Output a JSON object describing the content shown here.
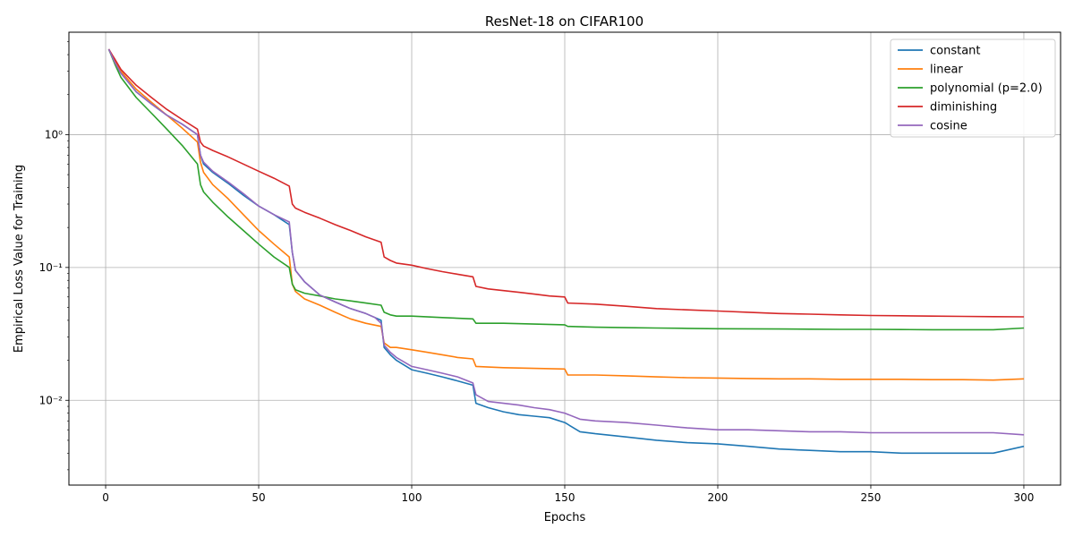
{
  "chart_data": {
    "type": "line",
    "title": "ResNet-18 on CIFAR100",
    "xlabel": "Epochs",
    "ylabel": "Empirical Loss Value for Training",
    "xlim": [
      -12,
      312
    ],
    "ylim": [
      0.0023,
      5.9
    ],
    "yscale": "log",
    "grid": true,
    "legend_position": "top-right",
    "x_ticks": [
      0,
      50,
      100,
      150,
      200,
      250,
      300
    ],
    "x_tick_labels": [
      "0",
      "50",
      "100",
      "150",
      "200",
      "250",
      "300"
    ],
    "y_ticks": [
      0.01,
      0.1,
      1
    ],
    "y_tick_labels": [
      "10⁻²",
      "10⁻¹",
      "10⁰"
    ],
    "series": [
      {
        "name": "constant",
        "color": "#1f77b4",
        "points": [
          [
            1,
            4.4
          ],
          [
            3,
            3.5
          ],
          [
            5,
            2.9
          ],
          [
            10,
            2.1
          ],
          [
            15,
            1.7
          ],
          [
            20,
            1.4
          ],
          [
            25,
            1.2
          ],
          [
            30,
            1.0
          ],
          [
            31,
            0.7
          ],
          [
            32,
            0.6
          ],
          [
            35,
            0.52
          ],
          [
            40,
            0.43
          ],
          [
            45,
            0.35
          ],
          [
            50,
            0.29
          ],
          [
            55,
            0.25
          ],
          [
            60,
            0.21
          ],
          [
            61,
            0.13
          ],
          [
            62,
            0.095
          ],
          [
            65,
            0.078
          ],
          [
            70,
            0.062
          ],
          [
            75,
            0.055
          ],
          [
            80,
            0.049
          ],
          [
            85,
            0.045
          ],
          [
            88,
            0.042
          ],
          [
            90,
            0.04
          ],
          [
            91,
            0.025
          ],
          [
            93,
            0.022
          ],
          [
            95,
            0.02
          ],
          [
            100,
            0.017
          ],
          [
            105,
            0.016
          ],
          [
            110,
            0.015
          ],
          [
            115,
            0.014
          ],
          [
            120,
            0.013
          ],
          [
            121,
            0.0095
          ],
          [
            125,
            0.0088
          ],
          [
            130,
            0.0082
          ],
          [
            135,
            0.0078
          ],
          [
            140,
            0.0076
          ],
          [
            145,
            0.0074
          ],
          [
            150,
            0.0068
          ],
          [
            155,
            0.0058
          ],
          [
            160,
            0.0056
          ],
          [
            170,
            0.0053
          ],
          [
            180,
            0.005
          ],
          [
            190,
            0.0048
          ],
          [
            200,
            0.0047
          ],
          [
            210,
            0.0045
          ],
          [
            220,
            0.0043
          ],
          [
            230,
            0.0042
          ],
          [
            240,
            0.0041
          ],
          [
            250,
            0.0041
          ],
          [
            260,
            0.004
          ],
          [
            270,
            0.004
          ],
          [
            280,
            0.004
          ],
          [
            290,
            0.004
          ],
          [
            300,
            0.0045
          ]
        ]
      },
      {
        "name": "linear",
        "color": "#ff7f0e",
        "points": [
          [
            1,
            4.4
          ],
          [
            3,
            3.6
          ],
          [
            5,
            3.0
          ],
          [
            10,
            2.2
          ],
          [
            15,
            1.75
          ],
          [
            20,
            1.4
          ],
          [
            25,
            1.12
          ],
          [
            30,
            0.88
          ],
          [
            31,
            0.62
          ],
          [
            32,
            0.52
          ],
          [
            35,
            0.42
          ],
          [
            40,
            0.33
          ],
          [
            45,
            0.25
          ],
          [
            50,
            0.19
          ],
          [
            55,
            0.15
          ],
          [
            60,
            0.12
          ],
          [
            61,
            0.075
          ],
          [
            62,
            0.066
          ],
          [
            65,
            0.058
          ],
          [
            70,
            0.052
          ],
          [
            75,
            0.046
          ],
          [
            80,
            0.041
          ],
          [
            85,
            0.038
          ],
          [
            90,
            0.036
          ],
          [
            91,
            0.027
          ],
          [
            93,
            0.025
          ],
          [
            95,
            0.025
          ],
          [
            100,
            0.024
          ],
          [
            105,
            0.023
          ],
          [
            110,
            0.022
          ],
          [
            115,
            0.021
          ],
          [
            120,
            0.0205
          ],
          [
            121,
            0.018
          ],
          [
            125,
            0.0178
          ],
          [
            130,
            0.0176
          ],
          [
            135,
            0.0175
          ],
          [
            140,
            0.0174
          ],
          [
            145,
            0.0173
          ],
          [
            150,
            0.0172
          ],
          [
            151,
            0.0155
          ],
          [
            160,
            0.0155
          ],
          [
            170,
            0.0153
          ],
          [
            180,
            0.015
          ],
          [
            190,
            0.0148
          ],
          [
            200,
            0.0147
          ],
          [
            210,
            0.0146
          ],
          [
            220,
            0.0145
          ],
          [
            230,
            0.0145
          ],
          [
            240,
            0.0144
          ],
          [
            250,
            0.0144
          ],
          [
            260,
            0.0144
          ],
          [
            270,
            0.0143
          ],
          [
            280,
            0.0143
          ],
          [
            290,
            0.0142
          ],
          [
            300,
            0.0145
          ]
        ]
      },
      {
        "name": "polynomial (p=2.0)",
        "color": "#2ca02c",
        "points": [
          [
            1,
            4.4
          ],
          [
            3,
            3.4
          ],
          [
            5,
            2.7
          ],
          [
            10,
            1.9
          ],
          [
            15,
            1.45
          ],
          [
            20,
            1.1
          ],
          [
            25,
            0.83
          ],
          [
            30,
            0.6
          ],
          [
            31,
            0.42
          ],
          [
            32,
            0.37
          ],
          [
            35,
            0.31
          ],
          [
            40,
            0.24
          ],
          [
            45,
            0.19
          ],
          [
            50,
            0.15
          ],
          [
            55,
            0.12
          ],
          [
            60,
            0.1
          ],
          [
            61,
            0.075
          ],
          [
            62,
            0.068
          ],
          [
            65,
            0.064
          ],
          [
            70,
            0.061
          ],
          [
            75,
            0.058
          ],
          [
            80,
            0.056
          ],
          [
            85,
            0.054
          ],
          [
            90,
            0.052
          ],
          [
            91,
            0.046
          ],
          [
            93,
            0.044
          ],
          [
            95,
            0.043
          ],
          [
            100,
            0.043
          ],
          [
            110,
            0.042
          ],
          [
            120,
            0.041
          ],
          [
            121,
            0.038
          ],
          [
            130,
            0.038
          ],
          [
            140,
            0.0375
          ],
          [
            150,
            0.037
          ],
          [
            151,
            0.036
          ],
          [
            160,
            0.0355
          ],
          [
            170,
            0.0352
          ],
          [
            180,
            0.035
          ],
          [
            190,
            0.0348
          ],
          [
            200,
            0.0346
          ],
          [
            210,
            0.0345
          ],
          [
            220,
            0.0344
          ],
          [
            230,
            0.0343
          ],
          [
            240,
            0.0342
          ],
          [
            250,
            0.0342
          ],
          [
            260,
            0.0341
          ],
          [
            270,
            0.034
          ],
          [
            280,
            0.034
          ],
          [
            290,
            0.034
          ],
          [
            300,
            0.035
          ]
        ]
      },
      {
        "name": "diminishing",
        "color": "#d62728",
        "points": [
          [
            1,
            4.4
          ],
          [
            3,
            3.7
          ],
          [
            5,
            3.1
          ],
          [
            10,
            2.35
          ],
          [
            15,
            1.9
          ],
          [
            20,
            1.55
          ],
          [
            25,
            1.3
          ],
          [
            30,
            1.1
          ],
          [
            31,
            0.88
          ],
          [
            32,
            0.82
          ],
          [
            35,
            0.76
          ],
          [
            40,
            0.68
          ],
          [
            45,
            0.6
          ],
          [
            50,
            0.53
          ],
          [
            55,
            0.47
          ],
          [
            60,
            0.41
          ],
          [
            61,
            0.3
          ],
          [
            62,
            0.28
          ],
          [
            65,
            0.26
          ],
          [
            70,
            0.235
          ],
          [
            75,
            0.21
          ],
          [
            80,
            0.19
          ],
          [
            85,
            0.17
          ],
          [
            90,
            0.155
          ],
          [
            91,
            0.12
          ],
          [
            93,
            0.113
          ],
          [
            95,
            0.108
          ],
          [
            100,
            0.104
          ],
          [
            105,
            0.098
          ],
          [
            110,
            0.093
          ],
          [
            115,
            0.089
          ],
          [
            120,
            0.085
          ],
          [
            121,
            0.072
          ],
          [
            125,
            0.069
          ],
          [
            130,
            0.067
          ],
          [
            135,
            0.065
          ],
          [
            140,
            0.063
          ],
          [
            145,
            0.061
          ],
          [
            150,
            0.06
          ],
          [
            151,
            0.054
          ],
          [
            160,
            0.053
          ],
          [
            170,
            0.051
          ],
          [
            180,
            0.049
          ],
          [
            190,
            0.048
          ],
          [
            200,
            0.047
          ],
          [
            210,
            0.046
          ],
          [
            220,
            0.045
          ],
          [
            230,
            0.0445
          ],
          [
            240,
            0.044
          ],
          [
            250,
            0.0435
          ],
          [
            260,
            0.0433
          ],
          [
            270,
            0.043
          ],
          [
            280,
            0.0428
          ],
          [
            290,
            0.0426
          ],
          [
            300,
            0.0425
          ]
        ]
      },
      {
        "name": "cosine",
        "color": "#9467bd",
        "points": [
          [
            1,
            4.4
          ],
          [
            3,
            3.5
          ],
          [
            5,
            2.9
          ],
          [
            10,
            2.1
          ],
          [
            15,
            1.7
          ],
          [
            20,
            1.4
          ],
          [
            25,
            1.2
          ],
          [
            30,
            1.0
          ],
          [
            31,
            0.7
          ],
          [
            32,
            0.62
          ],
          [
            35,
            0.53
          ],
          [
            40,
            0.44
          ],
          [
            45,
            0.36
          ],
          [
            50,
            0.29
          ],
          [
            55,
            0.25
          ],
          [
            60,
            0.22
          ],
          [
            61,
            0.13
          ],
          [
            62,
            0.095
          ],
          [
            65,
            0.078
          ],
          [
            70,
            0.062
          ],
          [
            75,
            0.055
          ],
          [
            80,
            0.049
          ],
          [
            85,
            0.045
          ],
          [
            88,
            0.042
          ],
          [
            90,
            0.038
          ],
          [
            91,
            0.026
          ],
          [
            93,
            0.023
          ],
          [
            95,
            0.021
          ],
          [
            100,
            0.018
          ],
          [
            105,
            0.017
          ],
          [
            110,
            0.016
          ],
          [
            115,
            0.015
          ],
          [
            120,
            0.0135
          ],
          [
            121,
            0.011
          ],
          [
            125,
            0.0098
          ],
          [
            130,
            0.0095
          ],
          [
            135,
            0.0092
          ],
          [
            140,
            0.0088
          ],
          [
            145,
            0.0085
          ],
          [
            150,
            0.008
          ],
          [
            155,
            0.0072
          ],
          [
            160,
            0.007
          ],
          [
            170,
            0.0068
          ],
          [
            180,
            0.0065
          ],
          [
            190,
            0.0062
          ],
          [
            200,
            0.006
          ],
          [
            210,
            0.006
          ],
          [
            220,
            0.0059
          ],
          [
            230,
            0.0058
          ],
          [
            240,
            0.0058
          ],
          [
            250,
            0.0057
          ],
          [
            260,
            0.0057
          ],
          [
            270,
            0.0057
          ],
          [
            280,
            0.0057
          ],
          [
            290,
            0.0057
          ],
          [
            300,
            0.0055
          ]
        ]
      }
    ]
  }
}
